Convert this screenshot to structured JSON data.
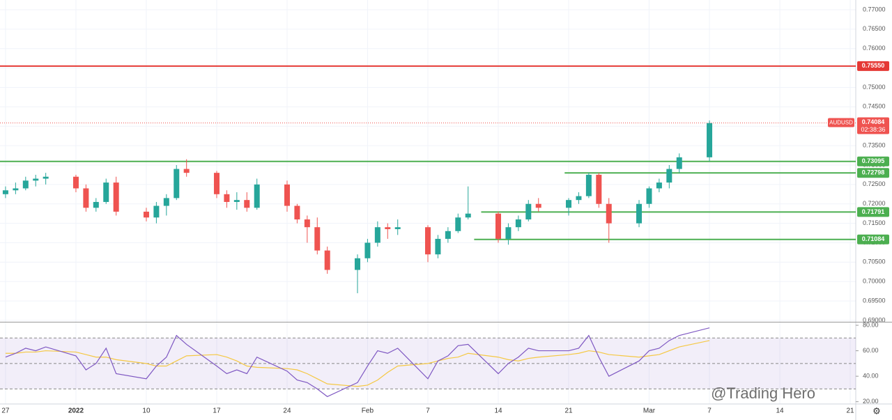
{
  "chart_data": {
    "type": "candlestick",
    "symbol": "AUDUSD",
    "watermark": "@Trading Hero",
    "x": [
      0,
      1,
      2,
      3,
      4,
      7,
      8,
      9,
      10,
      11,
      14,
      15,
      16,
      17,
      18,
      21,
      22,
      23,
      24,
      25,
      28,
      29,
      30,
      31,
      32,
      35,
      36,
      37,
      38,
      39,
      42,
      43,
      44,
      45,
      46,
      49,
      50,
      51,
      52,
      53,
      56,
      57,
      58,
      59,
      60,
      63,
      64,
      65,
      66,
      67,
      70
    ],
    "open": [
      0.7225,
      0.7235,
      0.724,
      0.726,
      0.7265,
      0.727,
      0.724,
      0.719,
      0.7205,
      0.7255,
      0.718,
      0.7165,
      0.7195,
      0.7215,
      0.729,
      0.728,
      0.7225,
      0.7205,
      0.721,
      0.719,
      0.725,
      0.7195,
      0.716,
      0.714,
      0.708,
      0.703,
      0.706,
      0.71,
      0.714,
      0.7135,
      0.714,
      0.707,
      0.711,
      0.713,
      0.7165,
      0.7175,
      0.711,
      0.714,
      0.716,
      0.72,
      0.719,
      0.721,
      0.722,
      0.7275,
      0.72,
      0.715,
      0.72,
      0.724,
      0.7255,
      0.729,
      0.732
    ],
    "high": [
      0.7245,
      0.7255,
      0.727,
      0.7275,
      0.728,
      0.7275,
      0.725,
      0.7215,
      0.7265,
      0.727,
      0.719,
      0.7205,
      0.7225,
      0.73,
      0.7315,
      0.7285,
      0.7235,
      0.723,
      0.723,
      0.7265,
      0.726,
      0.72,
      0.717,
      0.7165,
      0.709,
      0.707,
      0.711,
      0.7155,
      0.715,
      0.716,
      0.7145,
      0.712,
      0.714,
      0.7175,
      0.7245,
      0.718,
      0.715,
      0.717,
      0.721,
      0.7215,
      0.7215,
      0.723,
      0.728,
      0.728,
      0.7215,
      0.721,
      0.7245,
      0.7265,
      0.73,
      0.733,
      0.7415
    ],
    "low": [
      0.7215,
      0.7225,
      0.7235,
      0.7245,
      0.725,
      0.723,
      0.718,
      0.718,
      0.72,
      0.717,
      0.7155,
      0.715,
      0.717,
      0.721,
      0.727,
      0.7215,
      0.719,
      0.7185,
      0.718,
      0.7185,
      0.718,
      0.715,
      0.71,
      0.707,
      0.702,
      0.697,
      0.705,
      0.709,
      0.711,
      0.712,
      0.705,
      0.706,
      0.71,
      0.7125,
      0.716,
      0.71,
      0.7095,
      0.713,
      0.7155,
      0.718,
      0.717,
      0.72,
      0.7215,
      0.719,
      0.71,
      0.714,
      0.719,
      0.723,
      0.724,
      0.728,
      0.731
    ],
    "close": [
      0.7235,
      0.724,
      0.726,
      0.7265,
      0.727,
      0.724,
      0.719,
      0.7205,
      0.7255,
      0.718,
      0.7165,
      0.7195,
      0.7215,
      0.729,
      0.728,
      0.7225,
      0.7205,
      0.721,
      0.719,
      0.725,
      0.7195,
      0.716,
      0.714,
      0.708,
      0.703,
      0.706,
      0.71,
      0.714,
      0.7135,
      0.714,
      0.707,
      0.711,
      0.713,
      0.7165,
      0.7175,
      0.711,
      0.714,
      0.716,
      0.72,
      0.719,
      0.721,
      0.722,
      0.7275,
      0.72,
      0.715,
      0.72,
      0.724,
      0.7255,
      0.729,
      0.732,
      0.7408
    ],
    "up_color": "#26a69a",
    "down_color": "#ef5350",
    "xlim": [
      -0.55,
      84.55
    ],
    "xticks": [
      {
        "value": 0,
        "label": "27"
      },
      {
        "value": 7,
        "label": "2022"
      },
      {
        "value": 14,
        "label": "10"
      },
      {
        "value": 21,
        "label": "17"
      },
      {
        "value": 28,
        "label": "24"
      },
      {
        "value": 36,
        "label": "Feb"
      },
      {
        "value": 42,
        "label": "7"
      },
      {
        "value": 49,
        "label": "14"
      },
      {
        "value": 56,
        "label": "21"
      },
      {
        "value": 64,
        "label": "Mar"
      },
      {
        "value": 70,
        "label": "7"
      },
      {
        "value": 77,
        "label": "14"
      },
      {
        "value": 84,
        "label": "21"
      }
    ],
    "ylim": [
      0.68964,
      0.77251
    ],
    "yticks": [
      {
        "value": 0.69,
        "label": "0.69000"
      },
      {
        "value": 0.695,
        "label": "0.69500"
      },
      {
        "value": 0.7,
        "label": "0.70000"
      },
      {
        "value": 0.705,
        "label": "0.70500"
      },
      {
        "value": 0.71,
        "label": "0.71000"
      },
      {
        "value": 0.715,
        "label": "0.71500"
      },
      {
        "value": 0.72,
        "label": "0.72000"
      },
      {
        "value": 0.725,
        "label": "0.72500"
      },
      {
        "value": 0.73,
        "label": "0.73000"
      },
      {
        "value": 0.735,
        "label": "0.73500"
      },
      {
        "value": 0.74,
        "label": "0.74000"
      },
      {
        "value": 0.745,
        "label": "0.74500"
      },
      {
        "value": 0.75,
        "label": "0.75000"
      },
      {
        "value": 0.755,
        "label": "0.75500"
      },
      {
        "value": 0.76,
        "label": "0.76000"
      },
      {
        "value": 0.765,
        "label": "0.76500"
      },
      {
        "value": 0.77,
        "label": "0.77000"
      }
    ],
    "levels": [
      {
        "value": 0.7555,
        "label": "0.75550",
        "color": "#e53935",
        "start": -0.55
      },
      {
        "value": 0.73095,
        "label": "0.73095",
        "color": "#4caf50",
        "start": -0.55
      },
      {
        "value": 0.72798,
        "label": "0.72798",
        "color": "#4caf50",
        "start": 55.6
      },
      {
        "value": 0.71791,
        "label": "0.71791",
        "color": "#4caf50",
        "start": 47.3
      },
      {
        "value": 0.71084,
        "label": "0.71084",
        "color": "#4caf50",
        "start": 46.6
      }
    ],
    "last_price": {
      "value": 0.74084,
      "label": "0.74084",
      "countdown": "02:38:36",
      "color": "#ef5350"
    },
    "rsi": {
      "values": [
        55,
        58,
        62,
        60,
        63,
        56,
        45,
        50,
        62,
        42,
        38,
        48,
        55,
        72,
        65,
        48,
        42,
        45,
        42,
        55,
        44,
        37,
        35,
        30,
        24,
        35,
        48,
        60,
        58,
        62,
        38,
        52,
        56,
        64,
        65,
        42,
        50,
        55,
        62,
        60,
        60,
        62,
        72,
        55,
        40,
        52,
        60,
        62,
        68,
        72,
        78
      ],
      "ma": [
        58,
        58,
        59,
        59,
        60,
        59,
        57,
        55,
        55,
        53,
        50,
        48,
        48,
        52,
        56,
        57,
        55,
        52,
        48,
        47,
        46,
        45,
        42,
        38,
        34,
        32,
        33,
        37,
        43,
        48,
        50,
        52,
        54,
        55,
        58,
        55,
        53,
        52,
        54,
        55,
        57,
        58,
        60,
        59,
        57,
        55,
        56,
        57,
        60,
        63,
        68
      ],
      "color": "#7e57c2",
      "ma_color": "#f5c842",
      "band": [
        30,
        70
      ],
      "levels": [
        70,
        50,
        30
      ],
      "ylim": [
        18.2,
        82.2
      ],
      "yticks": [
        {
          "value": 20,
          "label": "20.00"
        },
        {
          "value": 40,
          "label": "40.00"
        },
        {
          "value": 60,
          "label": "60.00"
        },
        {
          "value": 80,
          "label": "80.00"
        }
      ]
    }
  }
}
